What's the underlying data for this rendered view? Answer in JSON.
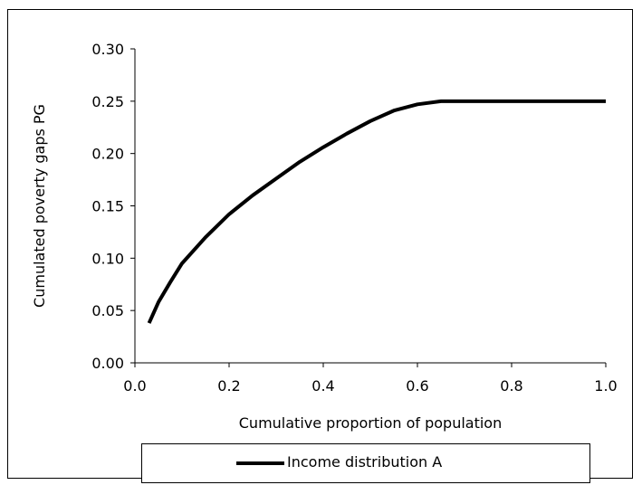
{
  "chart_data": {
    "type": "line",
    "xlabel": "Cumulative proportion of population",
    "ylabel": "Cumulated poverty gaps PG",
    "xlim": [
      0.0,
      1.0
    ],
    "ylim": [
      0.0,
      0.3
    ],
    "x_ticks": [
      "0.0",
      "0.2",
      "0.4",
      "0.6",
      "0.8",
      "1.0"
    ],
    "y_ticks": [
      "0.00",
      "0.05",
      "0.10",
      "0.15",
      "0.20",
      "0.25",
      "0.30"
    ],
    "grid": false,
    "legend_position": "bottom",
    "series": [
      {
        "name": "Income distribution A",
        "color": "#000000",
        "x": [
          0.03,
          0.05,
          0.075,
          0.1,
          0.15,
          0.2,
          0.25,
          0.3,
          0.35,
          0.4,
          0.45,
          0.5,
          0.55,
          0.6,
          0.65,
          0.7,
          0.8,
          0.9,
          1.0
        ],
        "y": [
          0.038,
          0.058,
          0.077,
          0.095,
          0.12,
          0.142,
          0.16,
          0.176,
          0.192,
          0.206,
          0.219,
          0.231,
          0.241,
          0.247,
          0.25,
          0.25,
          0.25,
          0.25,
          0.25
        ]
      }
    ]
  }
}
